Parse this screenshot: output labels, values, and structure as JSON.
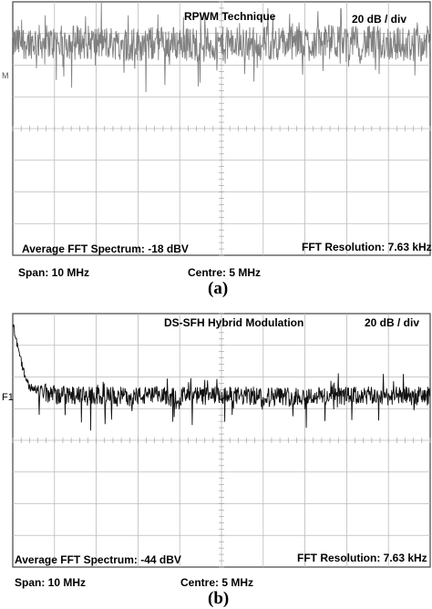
{
  "panels": [
    {
      "caption": "(a)",
      "title": "RPWM Technique",
      "scale": "20 dB / div",
      "avg_label": "Average FFT Spectrum: -18 dBV",
      "resolution_label": "FFT Resolution: 7.63 kHz",
      "span_label": "Span: 10 MHz",
      "centre_label": "Centre: 5 MHz",
      "marker_label": "M",
      "trace_color": "#808080"
    },
    {
      "caption": "(b)",
      "title": "DS-SFH Hybrid Modulation",
      "scale": "20 dB / div",
      "avg_label": "Average FFT Spectrum: -44 dBV",
      "resolution_label": "FFT Resolution: 7.63 kHz",
      "span_label": "Span: 10 MHz",
      "centre_label": "Centre: 5 MHz",
      "marker_label": "F1",
      "trace_color": "#111111"
    }
  ],
  "chart_data": [
    {
      "type": "line",
      "title": "RPWM Technique",
      "x_unit": "MHz",
      "xlim": [
        0,
        10
      ],
      "y_unit": "dB",
      "y_scale_per_div": 20,
      "grid": true,
      "series": [
        {
          "x": [
            0,
            0.5,
            1,
            1.5,
            2,
            2.5,
            3,
            3.5,
            4,
            4.5,
            5,
            5.5,
            6,
            6.5,
            7,
            7.5,
            8,
            8.5,
            9,
            9.5,
            10
          ],
          "values": [
            -18,
            -17,
            -18,
            -17,
            -18,
            -18,
            -19,
            -18,
            -18,
            -19,
            -19,
            -18,
            -18,
            -18,
            -18,
            -17,
            -18,
            -18,
            -18,
            -19,
            -18
          ]
        }
      ]
    },
    {
      "type": "line",
      "title": "DS-SFH Hybrid Modulation",
      "x_unit": "MHz",
      "xlim": [
        0,
        10
      ],
      "y_unit": "dB",
      "y_scale_per_div": 20,
      "grid": true,
      "series": [
        {
          "x": [
            0,
            0.1,
            0.2,
            0.3,
            0.4,
            0.6,
            0.8,
            1,
            1.5,
            2,
            2.5,
            3,
            3.5,
            4,
            4.5,
            5,
            5.5,
            6,
            6.5,
            7,
            7.5,
            8,
            8.5,
            9,
            9.5,
            10
          ],
          "values": [
            2,
            -10,
            -22,
            -32,
            -38,
            -41,
            -42,
            -43,
            -44,
            -44,
            -44,
            -44,
            -44,
            -44,
            -44,
            -44,
            -44,
            -44,
            -44,
            -44,
            -44,
            -44,
            -44,
            -44,
            -44,
            -44
          ]
        }
      ]
    }
  ]
}
